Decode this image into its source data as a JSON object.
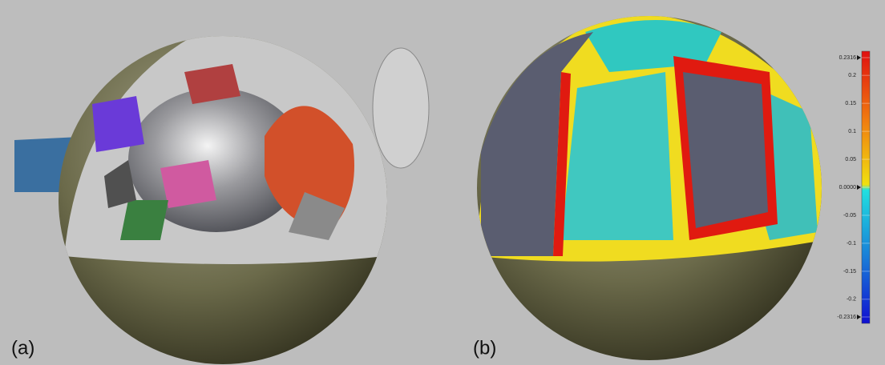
{
  "panels": [
    {
      "label": "(a)"
    },
    {
      "label": "(b)"
    }
  ],
  "colorbar": {
    "lim": [
      -0.2316,
      0.2316
    ],
    "ticks": [
      0.2316,
      0.2,
      0.15,
      0.1,
      0.05,
      {
        "value": 0,
        "label": "0.0000"
      },
      -0.05,
      -0.1,
      -0.15,
      -0.2,
      -0.2316
    ]
  }
}
